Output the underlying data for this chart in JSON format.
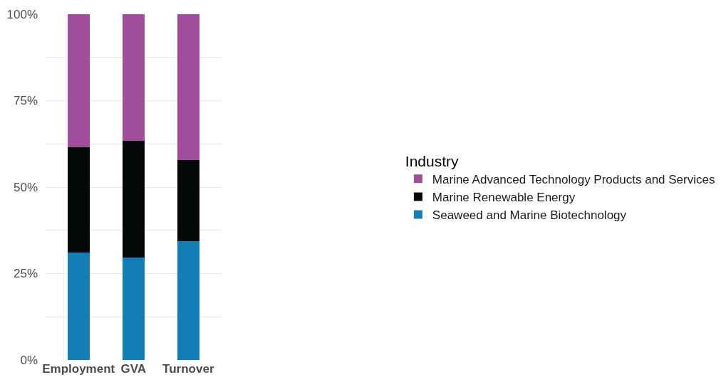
{
  "chart_data": {
    "type": "bar",
    "stacked": true,
    "legend_title": "Industry",
    "legend": "right",
    "grid": true,
    "categories": [
      "Employment",
      "GVA",
      "Turnover"
    ],
    "series": [
      {
        "name": "Seaweed and Marine Biotechnology",
        "color": "#127eb5",
        "values": [
          31.1,
          29.6,
          34.3
        ]
      },
      {
        "name": "Marine Renewable Energy",
        "color": "#05090a",
        "values": [
          30.4,
          33.8,
          23.6
        ]
      },
      {
        "name": "Marine Advanced Technology Products and Services",
        "color": "#a04e9c",
        "values": [
          38.5,
          36.6,
          42.1
        ]
      }
    ],
    "ylim": [
      0,
      100
    ],
    "yticks": [
      {
        "value": 0,
        "label": "0%"
      },
      {
        "value": 12.5,
        "label": null
      },
      {
        "value": 25,
        "label": "25%"
      },
      {
        "value": 37.5,
        "label": null
      },
      {
        "value": 50,
        "label": "50%"
      },
      {
        "value": 62.5,
        "label": null
      },
      {
        "value": 75,
        "label": "75%"
      },
      {
        "value": 87.5,
        "label": null
      },
      {
        "value": 100,
        "label": "100%"
      }
    ]
  }
}
